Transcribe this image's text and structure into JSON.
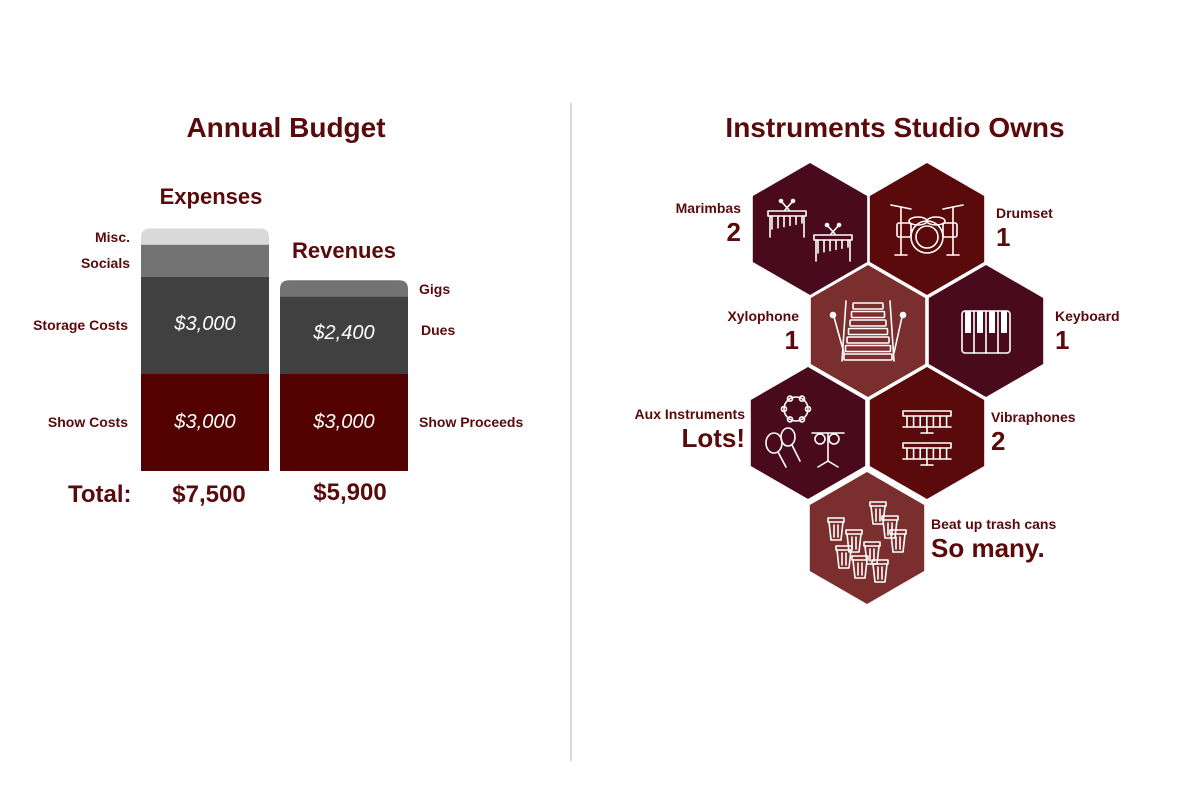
{
  "budget": {
    "title": "Annual Budget",
    "total_label": "Total:"
  },
  "instruments": {
    "title": "Instruments Studio Owns",
    "items": [
      {
        "name": "Marimbas",
        "count": "2",
        "color": "#4a0a1e",
        "icon": "marimba-icon"
      },
      {
        "name": "Drumset",
        "count": "1",
        "color": "#5a0a0a",
        "icon": "drumset-icon"
      },
      {
        "name": "Xylophone",
        "count": "1",
        "color": "#7a2e2e",
        "icon": "xylophone-icon"
      },
      {
        "name": "Keyboard",
        "count": "1",
        "color": "#4a0a1e",
        "icon": "keyboard-icon"
      },
      {
        "name": "Aux Instruments",
        "count": "Lots!",
        "color": "#4a0a1e",
        "icon": "aux-instruments-icon"
      },
      {
        "name": "Vibraphones",
        "count": "2",
        "color": "#5a0a0a",
        "icon": "vibraphone-icon"
      },
      {
        "name": "Beat up trash cans",
        "count": "So many.",
        "color": "#7a2e2e",
        "icon": "trash-can-icon"
      }
    ]
  },
  "chart_data": {
    "type": "bar",
    "stacked": true,
    "title": "Annual Budget",
    "categories": [
      "Expenses",
      "Revenues"
    ],
    "series": [
      {
        "name": "Show Costs",
        "stack": "Expenses",
        "value": 3000,
        "label": "$3,000",
        "color": "#520000"
      },
      {
        "name": "Storage Costs",
        "stack": "Expenses",
        "value": 3000,
        "label": "$3,000",
        "color": "#404040"
      },
      {
        "name": "Socials",
        "stack": "Expenses",
        "value": 1000,
        "color": "#737373"
      },
      {
        "name": "Misc.",
        "stack": "Expenses",
        "value": 500,
        "color": "#d9d9d9"
      },
      {
        "name": "Show Proceeds",
        "stack": "Revenues",
        "value": 3000,
        "label": "$3,000",
        "color": "#520000"
      },
      {
        "name": "Dues",
        "stack": "Revenues",
        "value": 2400,
        "label": "$2,400",
        "color": "#404040"
      },
      {
        "name": "Gigs",
        "stack": "Revenues",
        "value": 500,
        "color": "#737373"
      }
    ],
    "totals": {
      "Expenses": "$7,500",
      "Revenues": "$5,900"
    }
  }
}
